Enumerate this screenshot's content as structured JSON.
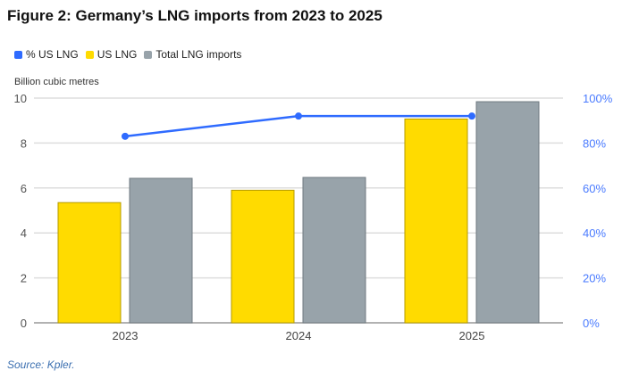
{
  "title": "Figure 2: Germany’s LNG imports from 2023 to 2025",
  "source": "Source: Kpler.",
  "chart_data": {
    "type": "bar",
    "categories": [
      "2023",
      "2024",
      "2025"
    ],
    "ylabel": "Billion cubic metres",
    "ylim": [
      0,
      10
    ],
    "yticks": [
      "0",
      "2",
      "4",
      "6",
      "8",
      "10"
    ],
    "y2lim": [
      0,
      100
    ],
    "y2ticks": [
      "0%",
      "20%",
      "40%",
      "60%",
      "80%",
      "100%"
    ],
    "grid": true,
    "legend_position": "top-left",
    "series": [
      {
        "name": "% US LNG",
        "type": "line",
        "axis": "right",
        "values": [
          83,
          92,
          92
        ],
        "color": "#2f6bff"
      },
      {
        "name": "US LNG",
        "type": "bar",
        "values": [
          5.35,
          5.9,
          9.07
        ],
        "color": "#ffdb00"
      },
      {
        "name": "Total LNG imports",
        "type": "bar",
        "values": [
          6.43,
          6.47,
          9.84
        ],
        "color": "#98a3aa"
      }
    ]
  }
}
